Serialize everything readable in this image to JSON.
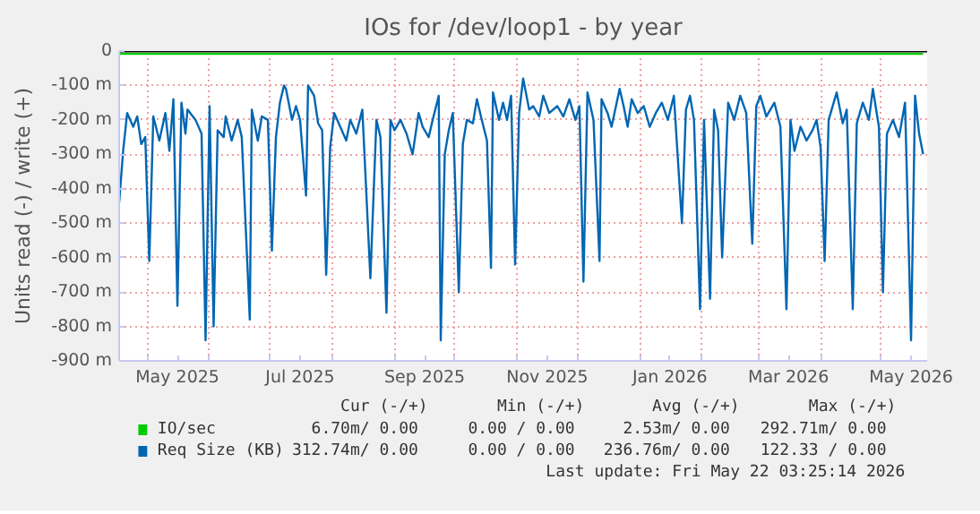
{
  "chart_data": {
    "type": "line",
    "title": "IOs for /dev/loop1 - by year",
    "ylabel": "Units read (-) / write (+)",
    "xlim": [
      "2025-04-17",
      "2026-05-24"
    ],
    "xticks": [
      {
        "value": "2025-05-01",
        "label": null
      },
      {
        "value": "2025-06-01",
        "label": null
      },
      {
        "value": "2025-07-01",
        "label": null
      },
      {
        "value": "2025-08-01",
        "label": null
      },
      {
        "value": "2025-09-01",
        "label": null
      },
      {
        "value": "2025-10-01",
        "label": null
      },
      {
        "value": "2025-11-01",
        "label": null
      },
      {
        "value": "2025-12-01",
        "label": null
      },
      {
        "value": "2026-01-01",
        "label": null
      },
      {
        "value": "2026-02-01",
        "label": null
      },
      {
        "value": "2026-03-01",
        "label": null
      },
      {
        "value": "2026-04-01",
        "label": null
      },
      {
        "value": "2026-05-01",
        "label": null
      },
      {
        "value": "2025-05-16",
        "label": "May 2025"
      },
      {
        "value": "2025-07-16",
        "label": "Jul 2025"
      },
      {
        "value": "2025-09-16",
        "label": "Sep 2025"
      },
      {
        "value": "2025-11-16",
        "label": "Nov 2025"
      },
      {
        "value": "2026-01-16",
        "label": "Jan 2026"
      },
      {
        "value": "2026-03-16",
        "label": "Mar 2026"
      },
      {
        "value": "2026-05-16",
        "label": "May 2026"
      }
    ],
    "ylim": [
      -900,
      0
    ],
    "yticks": [
      0,
      {
        "value": -100,
        "label": "-100 m"
      },
      {
        "value": -200,
        "label": "-200 m"
      },
      {
        "value": -300,
        "label": "-300 m"
      },
      {
        "value": -400,
        "label": "-400 m"
      },
      {
        "value": -500,
        "label": "-500 m"
      },
      {
        "value": -600,
        "label": "-600 m"
      },
      {
        "value": -700,
        "label": "-700 m"
      },
      {
        "value": -800,
        "label": "-800 m"
      },
      {
        "value": -900,
        "label": "-900 m"
      }
    ],
    "grid": true,
    "legend": "bottom",
    "ref_lines": [
      {
        "axis": "y",
        "value": 0,
        "color": "#000000"
      }
    ],
    "series": [
      {
        "name": "IO/sec",
        "color": "#00cc00",
        "x": [
          "2025-04-17",
          "2025-08-01",
          "2025-12-01",
          "2026-05-22"
        ],
        "values": [
          -8,
          -8,
          -8,
          -8
        ]
      },
      {
        "name": "Req Size (KB)",
        "color": "#0066b3",
        "x": [
          "2025-04-17",
          "2025-04-19",
          "2025-04-21",
          "2025-04-24",
          "2025-04-26",
          "2025-04-28",
          "2025-04-30",
          "2025-05-02",
          "2025-05-04",
          "2025-05-07",
          "2025-05-10",
          "2025-05-12",
          "2025-05-14",
          "2025-05-16",
          "2025-05-18",
          "2025-05-20",
          "2025-05-21",
          "2025-05-25",
          "2025-05-28",
          "2025-05-30",
          "2025-06-01",
          "2025-06-03",
          "2025-06-05",
          "2025-06-08",
          "2025-06-09",
          "2025-06-12",
          "2025-06-15",
          "2025-06-17",
          "2025-06-21",
          "2025-06-22",
          "2025-06-25",
          "2025-06-27",
          "2025-06-30",
          "2025-07-02",
          "2025-07-04",
          "2025-07-06",
          "2025-07-08",
          "2025-07-09",
          "2025-07-12",
          "2025-07-14",
          "2025-07-16",
          "2025-07-19",
          "2025-07-20",
          "2025-07-23",
          "2025-07-25",
          "2025-07-27",
          "2025-07-29",
          "2025-07-31",
          "2025-08-02",
          "2025-08-05",
          "2025-08-08",
          "2025-08-10",
          "2025-08-13",
          "2025-08-16",
          "2025-08-20",
          "2025-08-23",
          "2025-08-25",
          "2025-08-28",
          "2025-08-30",
          "2025-09-01",
          "2025-09-04",
          "2025-09-07",
          "2025-09-10",
          "2025-09-13",
          "2025-09-15",
          "2025-09-18",
          "2025-09-20",
          "2025-09-23",
          "2025-09-24",
          "2025-09-26",
          "2025-09-28",
          "2025-09-30",
          "2025-10-03",
          "2025-10-05",
          "2025-10-07",
          "2025-10-10",
          "2025-10-12",
          "2025-10-14",
          "2025-10-17",
          "2025-10-19",
          "2025-10-20",
          "2025-10-23",
          "2025-10-25",
          "2025-10-27",
          "2025-10-29",
          "2025-10-31",
          "2025-11-02",
          "2025-11-04",
          "2025-11-07",
          "2025-11-09",
          "2025-11-12",
          "2025-11-14",
          "2025-11-17",
          "2025-11-21",
          "2025-11-24",
          "2025-11-27",
          "2025-11-30",
          "2025-12-02",
          "2025-12-04",
          "2025-12-06",
          "2025-12-09",
          "2025-12-12",
          "2025-12-13",
          "2025-12-16",
          "2025-12-18",
          "2025-12-22",
          "2025-12-24",
          "2025-12-26",
          "2025-12-28",
          "2025-12-31",
          "2026-01-03",
          "2026-01-06",
          "2026-01-09",
          "2026-01-12",
          "2026-01-15",
          "2026-01-18",
          "2026-01-22",
          "2026-01-24",
          "2026-01-26",
          "2026-01-28",
          "2026-01-31",
          "2026-02-02",
          "2026-02-05",
          "2026-02-07",
          "2026-02-09",
          "2026-02-11",
          "2026-02-14",
          "2026-02-17",
          "2026-02-20",
          "2026-02-23",
          "2026-02-26",
          "2026-02-28",
          "2026-03-02",
          "2026-03-05",
          "2026-03-09",
          "2026-03-12",
          "2026-03-15",
          "2026-03-17",
          "2026-03-19",
          "2026-03-22",
          "2026-03-25",
          "2026-03-28",
          "2026-03-30",
          "2026-04-01",
          "2026-04-03",
          "2026-04-05",
          "2026-04-09",
          "2026-04-12",
          "2026-04-14",
          "2026-04-17",
          "2026-04-19",
          "2026-04-22",
          "2026-04-25",
          "2026-04-27",
          "2026-04-30",
          "2026-05-02",
          "2026-05-04",
          "2026-05-07",
          "2026-05-10",
          "2026-05-13",
          "2026-05-16",
          "2026-05-18",
          "2026-05-20",
          "2026-05-22"
        ],
        "values": [
          -440,
          -290,
          -180,
          -220,
          -190,
          -270,
          -250,
          -610,
          -190,
          -260,
          -180,
          -290,
          -140,
          -740,
          -150,
          -240,
          -170,
          -200,
          -240,
          -840,
          -160,
          -800,
          -230,
          -250,
          -190,
          -260,
          -200,
          -250,
          -780,
          -170,
          -260,
          -190,
          -200,
          -580,
          -250,
          -150,
          -100,
          -110,
          -200,
          -160,
          -200,
          -420,
          -100,
          -130,
          -210,
          -230,
          -650,
          -280,
          -180,
          -220,
          -260,
          -200,
          -240,
          -170,
          -660,
          -200,
          -250,
          -760,
          -200,
          -230,
          -200,
          -240,
          -300,
          -180,
          -220,
          -250,
          -200,
          -130,
          -840,
          -300,
          -230,
          -180,
          -700,
          -270,
          -200,
          -210,
          -140,
          -190,
          -260,
          -630,
          -120,
          -200,
          -150,
          -200,
          -130,
          -620,
          -180,
          -80,
          -170,
          -160,
          -190,
          -130,
          -180,
          -160,
          -190,
          -140,
          -200,
          -160,
          -670,
          -120,
          -200,
          -610,
          -140,
          -180,
          -220,
          -110,
          -160,
          -220,
          -140,
          -180,
          -160,
          -220,
          -180,
          -150,
          -200,
          -130,
          -500,
          -170,
          -130,
          -200,
          -750,
          -200,
          -720,
          -170,
          -230,
          -600,
          -150,
          -200,
          -130,
          -180,
          -560,
          -160,
          -130,
          -190,
          -150,
          -220,
          -750,
          -200,
          -290,
          -220,
          -260,
          -230,
          -200,
          -280,
          -610,
          -200,
          -120,
          -210,
          -170,
          -750,
          -210,
          -150,
          -200,
          -110,
          -220,
          -700,
          -240,
          -200,
          -250,
          -150,
          -840,
          -130,
          -240,
          -300
        ]
      }
    ],
    "annotations": [
      "Cur (-/+)",
      "Min (-/+)",
      "Avg (-/+)",
      "Max (-/+)",
      "6.70m/  0.00",
      "0.00 /  0.00",
      "2.53m/  0.00",
      "292.71m/  0.00",
      "312.74m/  0.00",
      "0.00 /  0.00",
      "236.76m/  0.00",
      "122.33 /  0.00",
      "Last update: Fri May 22 03:25:14 2026"
    ]
  }
}
